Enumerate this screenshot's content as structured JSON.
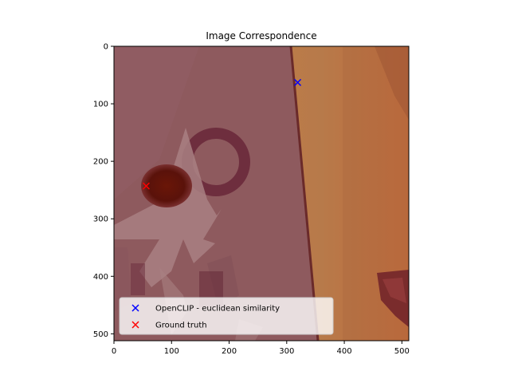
{
  "chart_data": {
    "type": "scatter",
    "title": "Image Correspondence",
    "xlabel": "",
    "ylabel": "",
    "xlim": [
      0,
      512
    ],
    "ylim": [
      512,
      0
    ],
    "x_ticks": [
      0,
      100,
      200,
      300,
      400,
      500
    ],
    "y_ticks": [
      0,
      100,
      200,
      300,
      400,
      500
    ],
    "grid": false,
    "legend_position": "lower-left",
    "background": "photograph with a red-tinted overlay on the left and an orange background on the right",
    "series": [
      {
        "name": "OpenCLIP - euclidean similarity",
        "marker": "x",
        "color": "#0000ff",
        "points": [
          [
            319,
            63
          ]
        ]
      },
      {
        "name": "Ground truth",
        "marker": "x",
        "color": "#ff0000",
        "points": [
          [
            56,
            243
          ]
        ]
      }
    ]
  }
}
